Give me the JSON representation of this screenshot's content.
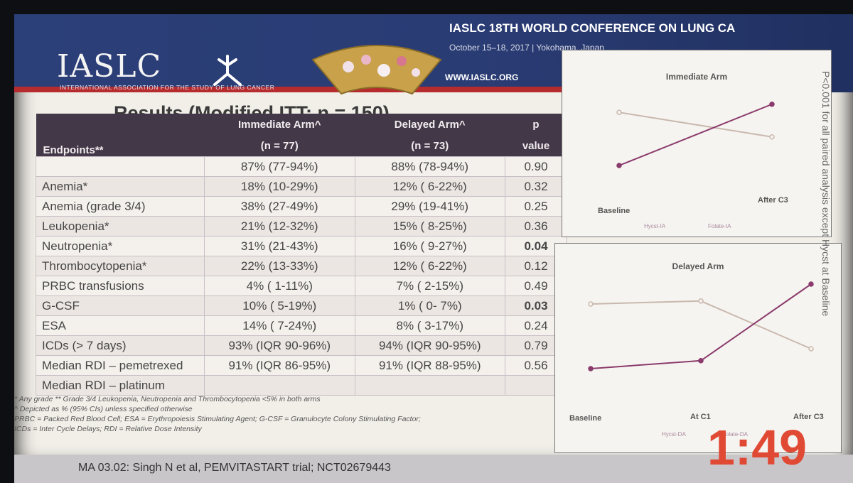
{
  "header": {
    "logo_text": "IASLC",
    "logo_subtitle": "INTERNATIONAL ASSOCIATION FOR THE STUDY OF LUNG CANCER",
    "conference_title": "IASLC 18TH WORLD CONFERENCE ON LUNG CA",
    "conference_dates": "October 15–18, 2017 | Yokohama, Japan",
    "website": "WWW.IASLC.ORG"
  },
  "results": {
    "title": "Results (Modified ITT; n = 150)",
    "columns": {
      "endpoints": "Endpoints**",
      "immediate": "Immediate Arm^",
      "immediate_n": "(n = 77)",
      "delayed": "Delayed Arm^",
      "delayed_n": "(n = 73)",
      "p": "p",
      "p2": "value"
    },
    "rows": [
      {
        "endpoint": "",
        "immediate": "87% (77-94%)",
        "delayed": "88% (78-94%)",
        "p": "0.90",
        "bold": false
      },
      {
        "endpoint": "Anemia*",
        "immediate": "18% (10-29%)",
        "delayed": "12% ( 6-22%)",
        "p": "0.32",
        "bold": false
      },
      {
        "endpoint": "Anemia (grade 3/4)",
        "immediate": "38% (27-49%)",
        "delayed": "29% (19-41%)",
        "p": "0.25",
        "bold": false
      },
      {
        "endpoint": "Leukopenia*",
        "immediate": "21% (12-32%)",
        "delayed": "15% ( 8-25%)",
        "p": "0.36",
        "bold": false
      },
      {
        "endpoint": "Neutropenia*",
        "immediate": "31% (21-43%)",
        "delayed": "16% ( 9-27%)",
        "p": "0.04",
        "bold": true
      },
      {
        "endpoint": "Thrombocytopenia*",
        "immediate": "22% (13-33%)",
        "delayed": "12% ( 6-22%)",
        "p": "0.12",
        "bold": false
      },
      {
        "endpoint": "PRBC transfusions",
        "immediate": "4% ( 1-11%)",
        "delayed": "7% ( 2-15%)",
        "p": "0.49",
        "bold": false
      },
      {
        "endpoint": "G-CSF",
        "immediate": "10% ( 5-19%)",
        "delayed": "1% ( 0- 7%)",
        "p": "0.03",
        "bold": true
      },
      {
        "endpoint": "ESA",
        "immediate": "14% ( 7-24%)",
        "delayed": "8% ( 3-17%)",
        "p": "0.24",
        "bold": false
      },
      {
        "endpoint": "ICDs (> 7 days)",
        "immediate": "93% (IQR 90-96%)",
        "delayed": "94% (IQR 90-95%)",
        "p": "0.79",
        "bold": false
      },
      {
        "endpoint": "Median RDI – pemetrexed",
        "immediate": "91% (IQR 86-95%)",
        "delayed": "91% (IQR 88-95%)",
        "p": "0.56",
        "bold": false
      },
      {
        "endpoint": "Median RDI – platinum",
        "immediate": "",
        "delayed": "",
        "p": "",
        "bold": false
      }
    ]
  },
  "footnotes": [
    "* Any grade      ** Grade 3/4 Leukopenia, Neutropenia and Thrombocytopenia <5% in both arms",
    "^ Depicted as % (95% CIs) unless specified otherwise",
    "PRBC = Packed Red Blood Cell;  ESA = Erythropoiesis Stimulating Agent; G-CSF = Granulocyte Colony Stimulating Factor;",
    "ICDs = Inter Cycle Delays; RDI = Relative Dose Intensity"
  ],
  "side_note": "P<0.001 for all paired analysis except Hycst at Baseline",
  "citation": "MA 03.02:  Singh N et al, PEMVITASTART trial; NCT02679443",
  "timer": "1:49",
  "colors": {
    "banner": "#2b3f78",
    "red_stripe": "#b62b2e",
    "table_header": "#433847",
    "hycst_line": "#c9b8ae",
    "folate_line": "#8a3a6c",
    "timer": "#e04a35"
  },
  "chart_data": [
    {
      "type": "line",
      "title": "Immediate Arm",
      "categories": [
        "Baseline",
        "After C3"
      ],
      "series": [
        {
          "name": "Hycst-IA",
          "values": [
            0.85,
            0.55
          ]
        },
        {
          "name": "Folate-IA",
          "values": [
            0.2,
            0.95
          ]
        }
      ]
    },
    {
      "type": "line",
      "title": "Delayed Arm",
      "categories": [
        "Baseline",
        "At C1",
        "After C3"
      ],
      "series": [
        {
          "name": "Hycst-DA",
          "values": [
            0.75,
            0.78,
            0.3
          ]
        },
        {
          "name": "Folate-DA",
          "values": [
            0.1,
            0.18,
            0.95
          ]
        }
      ]
    }
  ]
}
